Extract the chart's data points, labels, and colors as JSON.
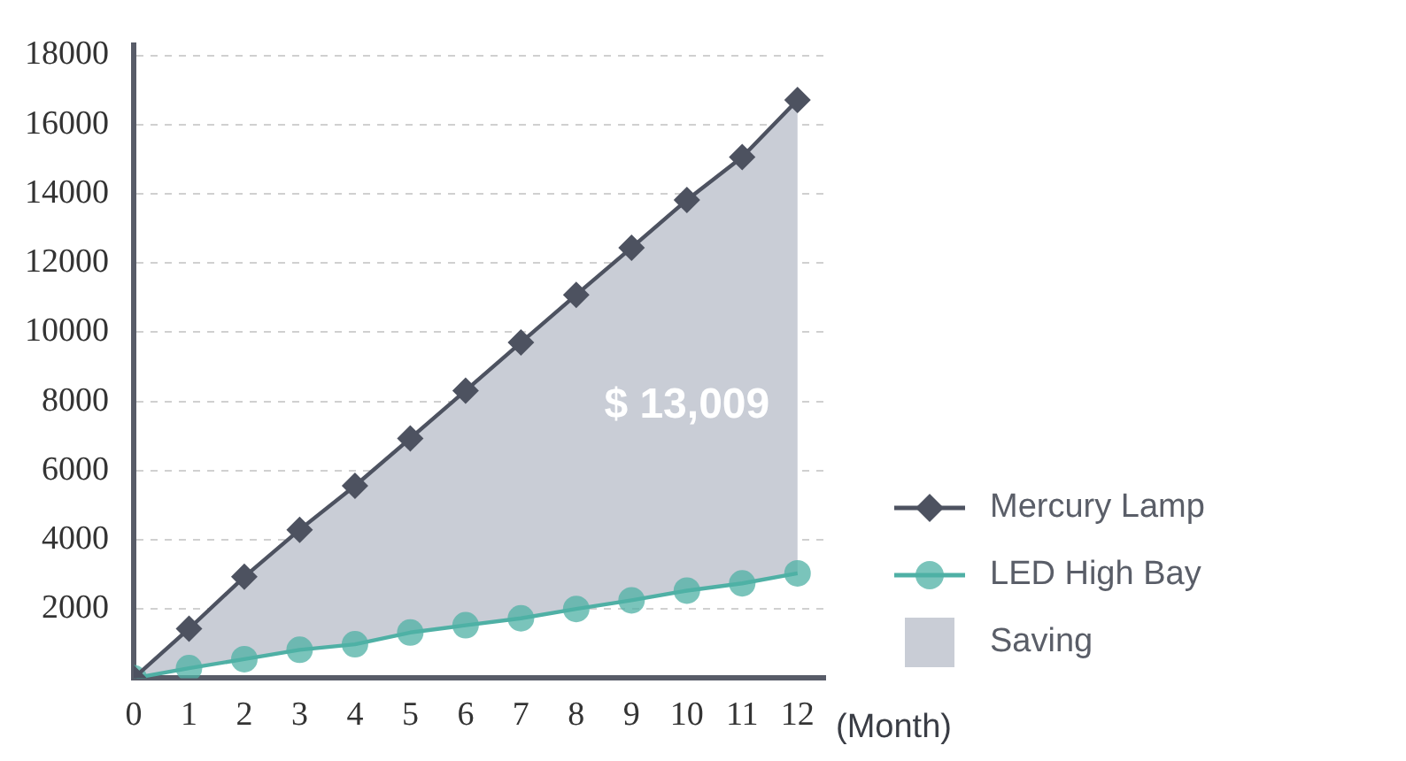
{
  "chart_data": {
    "type": "line",
    "xlabel": "(Month)",
    "x": [
      0,
      1,
      2,
      3,
      4,
      5,
      6,
      7,
      8,
      9,
      10,
      11,
      12
    ],
    "series": [
      {
        "name": "Mercury Lamp",
        "color": "#4d5260",
        "marker": "diamond",
        "values": [
          0,
          1430,
          2930,
          4290,
          5560,
          6930,
          8310,
          9700,
          11080,
          12440,
          13820,
          15060,
          16710
        ]
      },
      {
        "name": "LED High Bay",
        "color": "#4fb0a5",
        "marker": "circle",
        "values": [
          0,
          290,
          550,
          820,
          980,
          1320,
          1530,
          1730,
          2000,
          2250,
          2530,
          2740,
          3030
        ]
      },
      {
        "name": "Saving",
        "color": "#c9cdd6",
        "marker": "none",
        "values": [
          null,
          null,
          null,
          null,
          null,
          null,
          null,
          null,
          null,
          null,
          null,
          null,
          null
        ],
        "lower": [
          0,
          290,
          550,
          820,
          980,
          1320,
          1530,
          1730,
          2000,
          2250,
          2530,
          2740,
          3030
        ],
        "upper": [
          0,
          1430,
          2930,
          4290,
          5560,
          6930,
          8310,
          9700,
          11080,
          12440,
          13820,
          15060,
          16710
        ]
      }
    ],
    "annotations": [
      "$ 13,009"
    ],
    "xlim": [
      0,
      12.5
    ],
    "xticks": [
      0,
      1,
      2,
      3,
      4,
      5,
      6,
      7,
      8,
      9,
      10,
      11,
      12
    ],
    "ylim": [
      0,
      18300
    ],
    "yticks": [
      2000,
      4000,
      6000,
      8000,
      10000,
      12000,
      14000,
      16000,
      18000
    ],
    "grid": "y",
    "legend": "right",
    "line_style": "solid"
  }
}
